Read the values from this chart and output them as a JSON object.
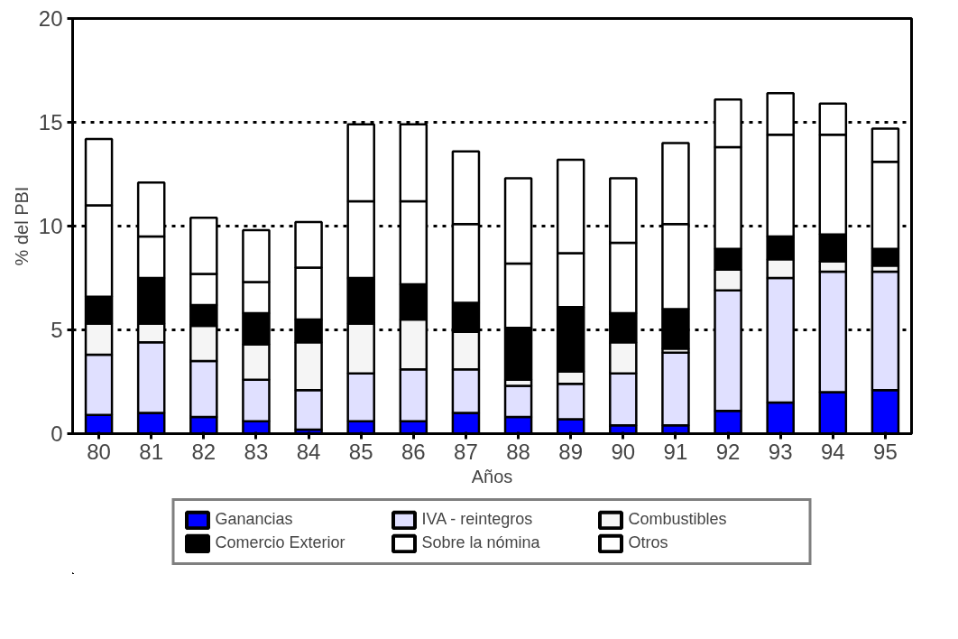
{
  "chart_data": {
    "type": "bar",
    "stacked": true,
    "xlabel": "Años",
    "ylabel": "% del PBI",
    "categories": [
      "80",
      "81",
      "82",
      "83",
      "84",
      "85",
      "86",
      "87",
      "88",
      "89",
      "90",
      "91",
      "92",
      "93",
      "94",
      "95"
    ],
    "series": [
      {
        "name": "Ganancias",
        "color": "#0000ff",
        "values": [
          0.9,
          1.0,
          0.8,
          0.6,
          0.2,
          0.6,
          0.6,
          1.0,
          0.8,
          0.7,
          0.4,
          0.4,
          1.1,
          1.5,
          2.0,
          2.1
        ]
      },
      {
        "name": "IVA - reintegros",
        "color": "#e0e0ff",
        "values": [
          2.9,
          3.4,
          2.7,
          2.0,
          1.9,
          2.3,
          2.5,
          2.1,
          1.5,
          1.7,
          2.5,
          3.5,
          5.8,
          6.0,
          5.8,
          5.7
        ]
      },
      {
        "name": "Combustibles",
        "color": "#f5f5f5",
        "values": [
          1.5,
          0.9,
          1.7,
          1.7,
          2.3,
          2.4,
          2.4,
          1.8,
          0.3,
          0.6,
          1.5,
          0.2,
          1.0,
          0.9,
          0.5,
          0.3
        ]
      },
      {
        "name": "Comercio Exterior",
        "color": "#000000",
        "values": [
          1.3,
          2.2,
          1.0,
          1.5,
          1.1,
          2.2,
          1.7,
          1.4,
          2.5,
          3.1,
          1.4,
          1.9,
          1.0,
          1.1,
          1.3,
          0.8
        ]
      },
      {
        "name": "Sobre la nómina",
        "color": "#ffffff",
        "values": [
          4.4,
          2.0,
          1.5,
          1.5,
          2.5,
          3.7,
          4.0,
          3.8,
          3.1,
          2.6,
          3.4,
          4.1,
          4.9,
          4.9,
          4.8,
          4.2
        ]
      },
      {
        "name": "Otros",
        "color": "#ffffff",
        "values": [
          3.2,
          2.6,
          2.7,
          2.5,
          2.2,
          3.7,
          3.7,
          3.5,
          4.1,
          4.5,
          3.1,
          3.9,
          2.3,
          2.0,
          1.5,
          1.6
        ]
      }
    ],
    "ylim": [
      0,
      20
    ],
    "yticks": [
      0,
      5,
      10,
      15,
      20
    ],
    "grid": "y",
    "legend": "bottom"
  }
}
